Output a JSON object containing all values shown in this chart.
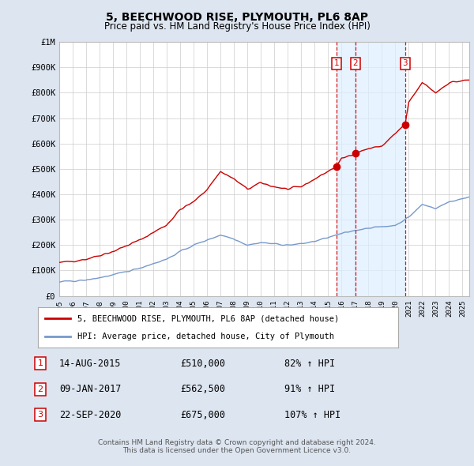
{
  "title": "5, BEECHWOOD RISE, PLYMOUTH, PL6 8AP",
  "subtitle": "Price paid vs. HM Land Registry's House Price Index (HPI)",
  "legend_line1": "5, BEECHWOOD RISE, PLYMOUTH, PL6 8AP (detached house)",
  "legend_line2": "HPI: Average price, detached house, City of Plymouth",
  "footer1": "Contains HM Land Registry data © Crown copyright and database right 2024.",
  "footer2": "This data is licensed under the Open Government Licence v3.0.",
  "sales": [
    {
      "num": 1,
      "date": "14-AUG-2015",
      "price": "£510,000",
      "pct": "82% ↑ HPI",
      "year": 2015.62
    },
    {
      "num": 2,
      "date": "09-JAN-2017",
      "price": "£562,500",
      "pct": "91% ↑ HPI",
      "year": 2017.03
    },
    {
      "num": 3,
      "date": "22-SEP-2020",
      "price": "£675,000",
      "pct": "107% ↑ HPI",
      "year": 2020.73
    }
  ],
  "red_line_color": "#cc0000",
  "blue_line_color": "#7799cc",
  "vline_color": "#cc0000",
  "box_color": "#cc0000",
  "background_color": "#dde5f0",
  "plot_bg": "#ffffff",
  "shade_color": "#ddeeff",
  "xlim": [
    1995.0,
    2025.5
  ],
  "ylim": [
    0,
    1000000
  ],
  "yticks": [
    0,
    100000,
    200000,
    300000,
    400000,
    500000,
    600000,
    700000,
    800000,
    900000,
    1000000
  ],
  "ytick_labels": [
    "£0",
    "£100K",
    "£200K",
    "£300K",
    "£400K",
    "£500K",
    "£600K",
    "£700K",
    "£800K",
    "£900K",
    "£1M"
  ],
  "xticks": [
    1995,
    1996,
    1997,
    1998,
    1999,
    2000,
    2001,
    2002,
    2003,
    2004,
    2005,
    2006,
    2007,
    2008,
    2009,
    2010,
    2011,
    2012,
    2013,
    2014,
    2015,
    2016,
    2017,
    2018,
    2019,
    2020,
    2021,
    2022,
    2023,
    2024,
    2025
  ]
}
